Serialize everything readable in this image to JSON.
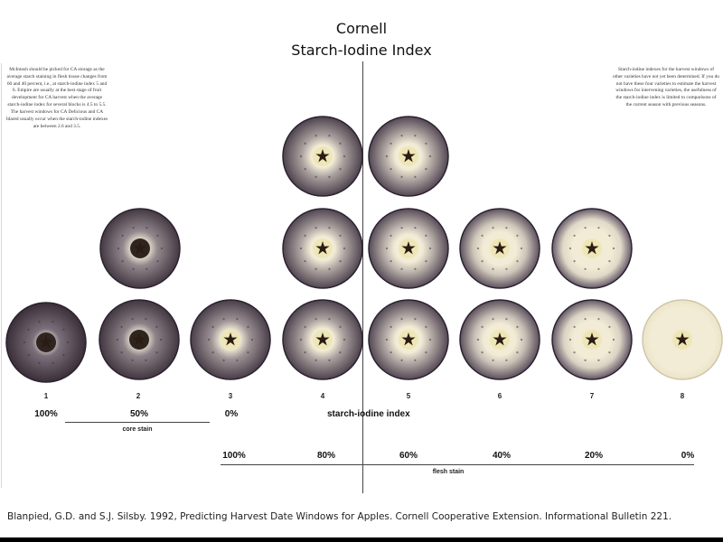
{
  "title": {
    "line1": "Cornell",
    "line2": "Starch-Iodine Index"
  },
  "notes": {
    "left": "McIntosh should be picked for CA storage as the average starch staining in flesh tissue changes from 60 and 40 percent, i.e., at starch-iodine index 5 and 6. Empire are usually at the best stage of fruit development for CA harvest when the average starch-iodine index for several blocks is 4.5 to 5.5. The harvest windows for CA Delicious and CA Idared usually occur when the starch-iodine indexes are between 2.6 and 3.5.",
    "right": "Starch-iodine indexes for the harvest windows of other varieties have not yet been determined. If you do not have these four varieties to estimate the harvest windows for intervening varieties, the usefulness of the starch-iodine index is limited to comparisons of the current season with previous seasons."
  },
  "index_numbers": [
    "1",
    "2",
    "3",
    "4",
    "5",
    "6",
    "7",
    "8"
  ],
  "core_stain": {
    "label": "core stain",
    "values": [
      "100%",
      "50%",
      "0%"
    ]
  },
  "axis_title": "starch-iodine index",
  "flesh_stain": {
    "label": "flesh stain",
    "values": [
      "100%",
      "80%",
      "60%",
      "40%",
      "20%",
      "0%"
    ]
  },
  "citation": "Blanpied, G.D. and S.J. Silsby. 1992, Predicting Harvest Date Windows for Apples. Cornell Cooperative Extension. Informational Bulletin 221.",
  "apples": [
    {
      "name": "index-1",
      "stain": 1.0
    },
    {
      "name": "index-2-bottom",
      "stain": 0.85
    },
    {
      "name": "index-2-middle",
      "stain": 0.8
    },
    {
      "name": "index-3",
      "stain": 0.7
    },
    {
      "name": "index-4-bottom",
      "stain": 0.6
    },
    {
      "name": "index-4-middle",
      "stain": 0.55
    },
    {
      "name": "index-4-top",
      "stain": 0.6
    },
    {
      "name": "index-5-bottom",
      "stain": 0.5
    },
    {
      "name": "index-5-middle",
      "stain": 0.45
    },
    {
      "name": "index-5-top",
      "stain": 0.5
    },
    {
      "name": "index-6-bottom",
      "stain": 0.35
    },
    {
      "name": "index-6-middle",
      "stain": 0.3
    },
    {
      "name": "index-7-bottom",
      "stain": 0.2
    },
    {
      "name": "index-7-middle",
      "stain": 0.15
    },
    {
      "name": "index-8",
      "stain": 0.0
    }
  ],
  "colors": {
    "stain_dark": "#3a2f38",
    "stain_mid": "#6d6170",
    "flesh_light": "#f2ecd6",
    "core_dark": "#2a1c12"
  }
}
